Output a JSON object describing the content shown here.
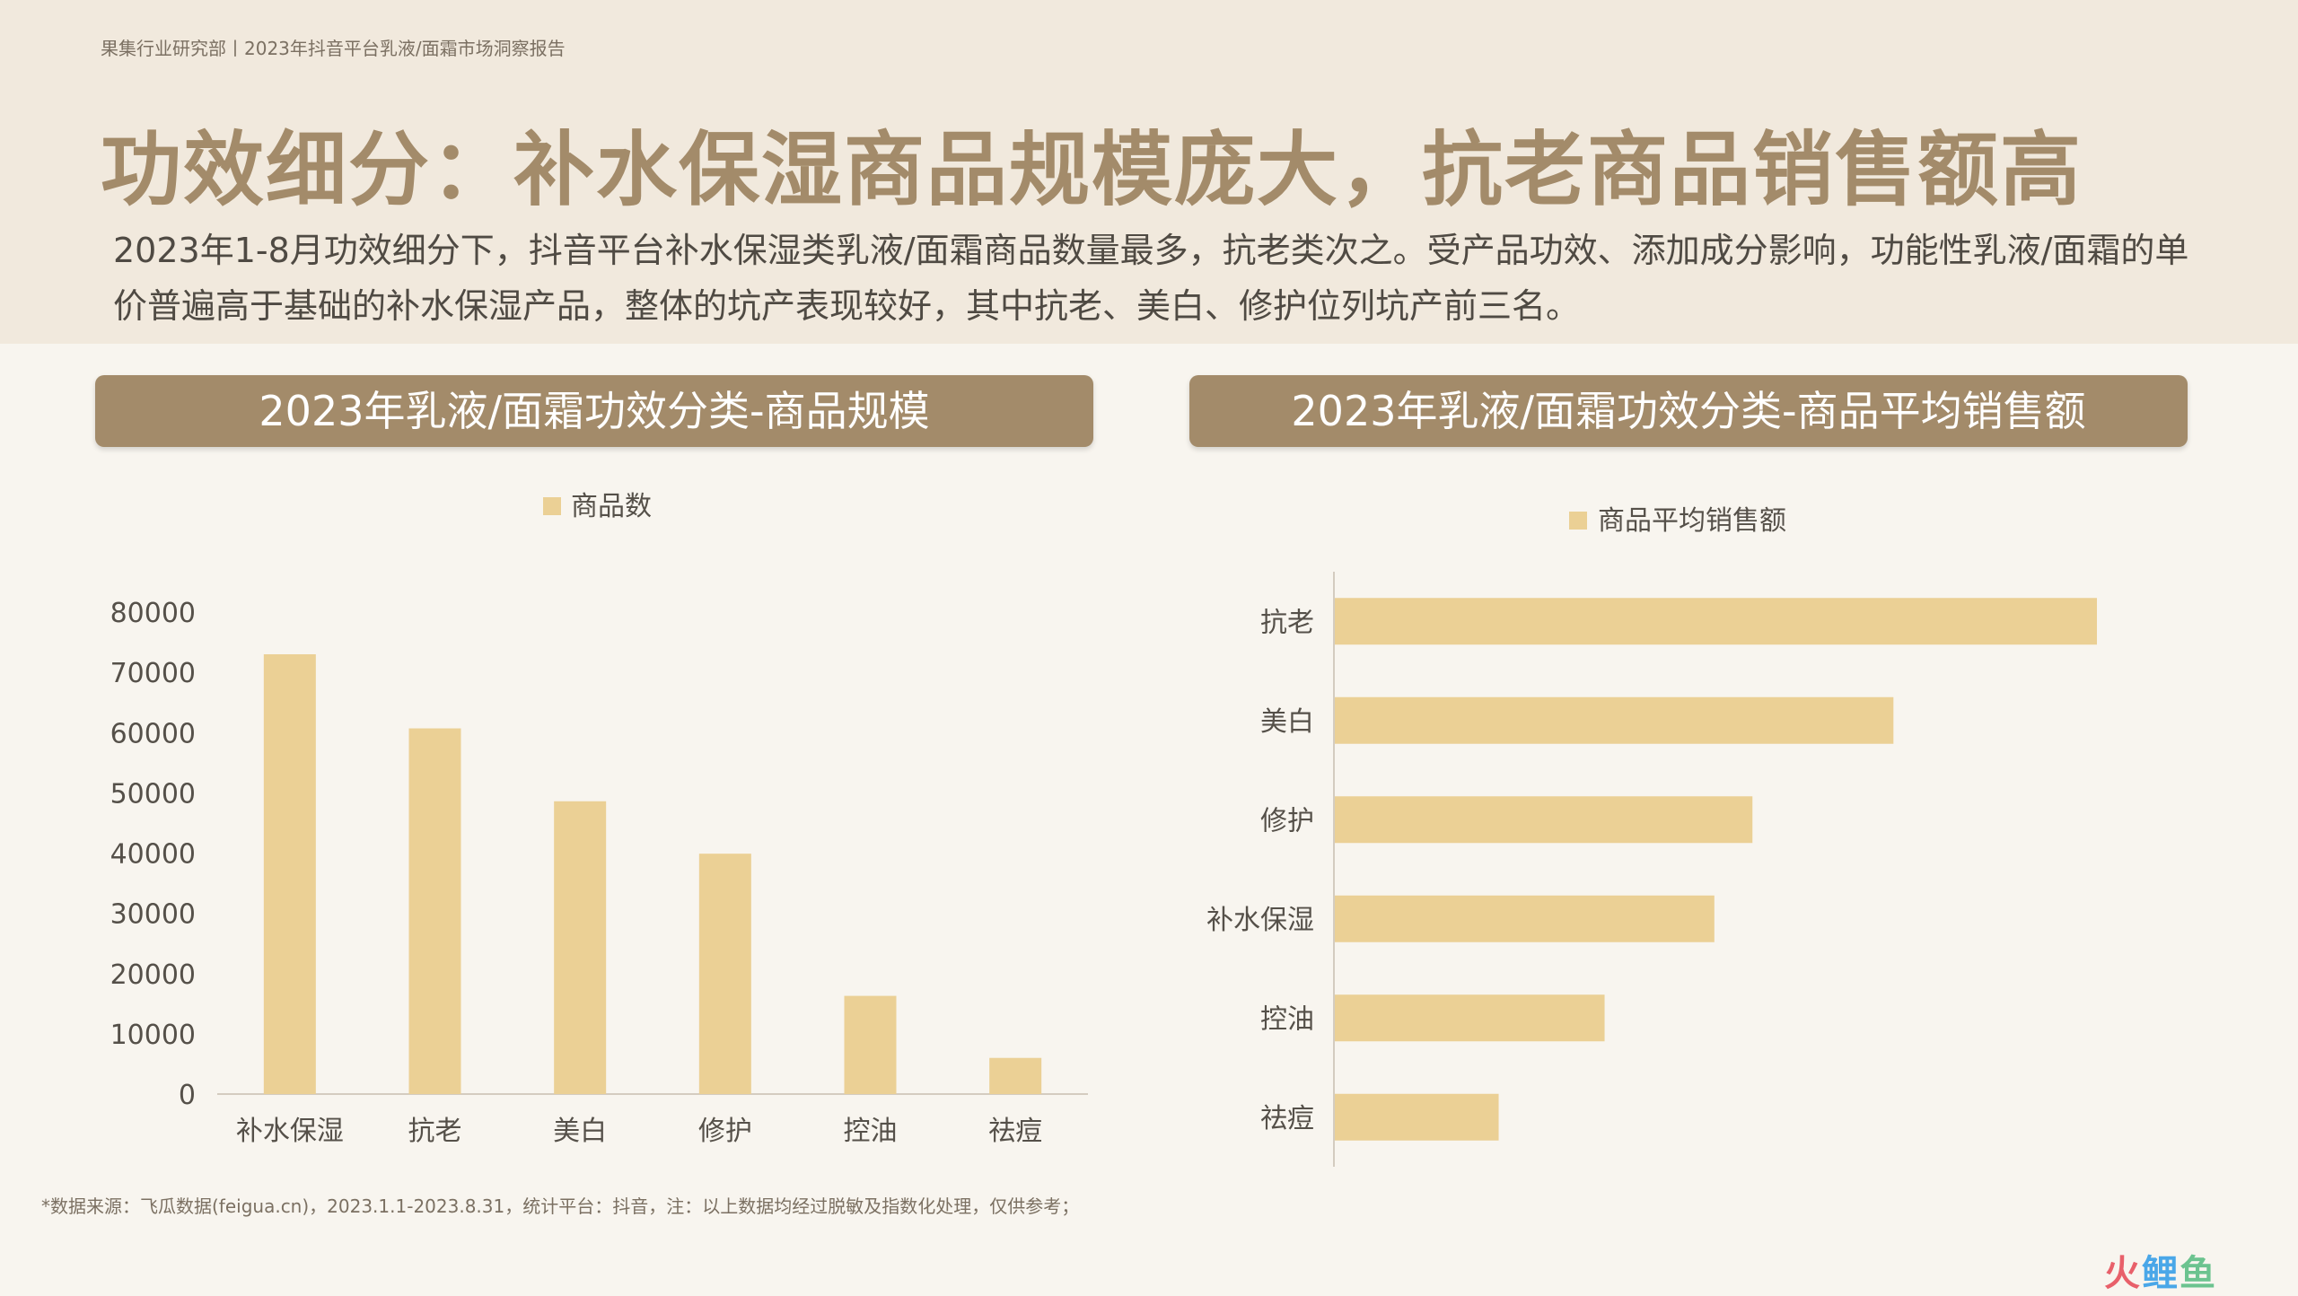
{
  "header": {
    "source_line": "果集行业研究部丨2023年抖音平台乳液/面霜市场洞察报告",
    "title": "功效细分：补水保湿商品规模庞大，抗老商品销售额高",
    "description": "2023年1-8月功效细分下，抖音平台补水保湿类乳液/面霜商品数量最多，抗老类次之。受产品功效、添加成分影响，功能性乳液/面霜的单价普遍高于基础的补水保湿产品，整体的坑产表现较好，其中抗老、美白、修护位列坑产前三名。"
  },
  "panels": {
    "left_title": "2023年乳液/面霜功效分类-商品规模",
    "right_title": "2023年乳液/面霜功效分类-商品平均销售额"
  },
  "colors": {
    "bar": "#ebd095",
    "accent": "#a38b6a"
  },
  "chart_data": [
    {
      "type": "bar",
      "title": "2023年乳液/面霜功效分类-商品规模",
      "categories": [
        "补水保湿",
        "抗老",
        "美白",
        "修护",
        "控油",
        "祛痘"
      ],
      "series": [
        {
          "name": "商品数",
          "values": [
            73000,
            60700,
            48600,
            39900,
            16300,
            6000
          ]
        }
      ],
      "ylim": [
        0,
        80000
      ],
      "yticks": [
        "0",
        "10000",
        "20000",
        "30000",
        "40000",
        "50000",
        "60000",
        "70000",
        "80000"
      ],
      "legend": "top-center",
      "grid": false
    },
    {
      "type": "bar",
      "orientation": "horizontal",
      "title": "2023年乳液/面霜功效分类-商品平均销售额",
      "categories": [
        "抗老",
        "美白",
        "修护",
        "补水保湿",
        "控油",
        "祛痘"
      ],
      "series": [
        {
          "name": "商品平均销售额",
          "values": [
            100,
            73.3,
            54.8,
            49.8,
            35.4,
            21.5
          ]
        }
      ],
      "xlim": [
        0,
        100
      ],
      "legend": "top-center",
      "grid": false
    }
  ],
  "footnote": "*数据来源：飞瓜数据(feigua.cn)，2023.1.1-2023.8.31，统计平台：抖音，注：以上数据均经过脱敏及指数化处理，仅供参考；",
  "watermark": {
    "part1": "火",
    "part2": "鲤",
    "part3": "鱼"
  }
}
